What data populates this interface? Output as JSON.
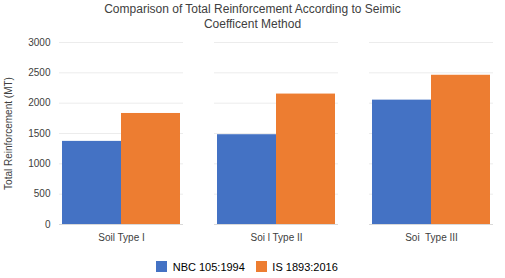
{
  "chart_data": {
    "type": "bar",
    "title": "Comparison of Total Reinforcement According to Seimic\nCoefficent Method",
    "ylabel": "Total Reinforcement (MT)",
    "categories": [
      "Soil Type I",
      "Soi l Type II",
      "Soi  Type III"
    ],
    "series": [
      {
        "name": "NBC 105:1994",
        "color": "#4472C4",
        "values": [
          1370,
          1480,
          2050
        ]
      },
      {
        "name": "IS 1893:2016",
        "color": "#ED7D31",
        "values": [
          1830,
          2150,
          2460
        ]
      }
    ],
    "ylim": [
      0,
      3000
    ],
    "yticks": [
      0,
      500,
      1000,
      1500,
      2000,
      2500,
      3000
    ],
    "grid": true,
    "legend": "bottom"
  }
}
